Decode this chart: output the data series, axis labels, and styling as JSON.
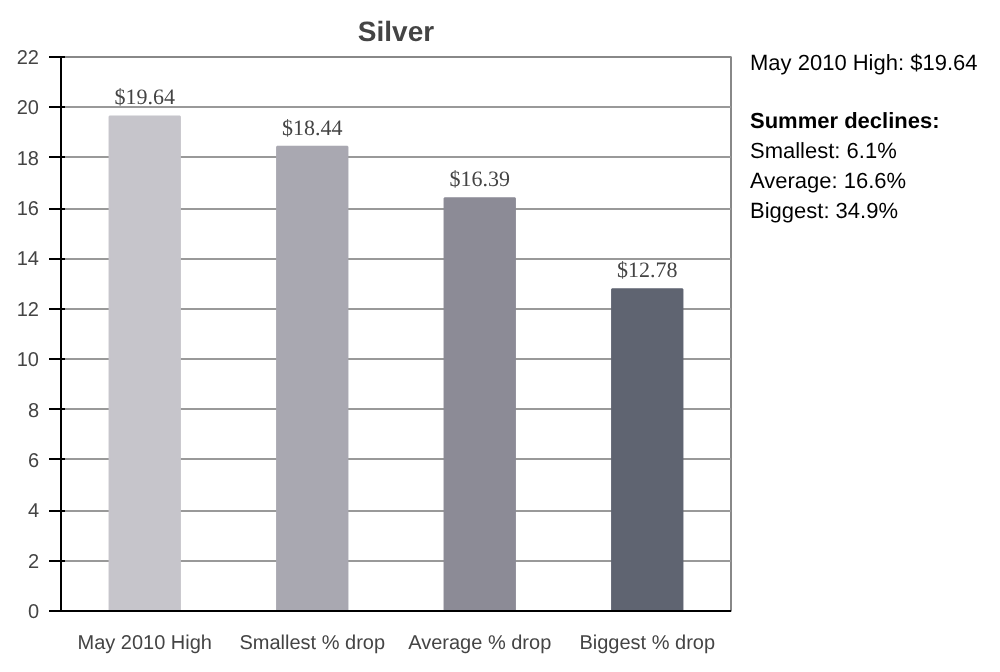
{
  "chart_data": {
    "type": "bar",
    "title": "Silver",
    "categories": [
      "May 2010 High",
      "Smallest % drop",
      "Average % drop",
      "Biggest % drop"
    ],
    "values": [
      19.64,
      18.44,
      16.39,
      12.78
    ],
    "value_labels": [
      "$19.64",
      "$18.44",
      "$16.39",
      "$12.78"
    ],
    "colors": [
      "#c6c5cb",
      "#a9a8b1",
      "#8c8b96",
      "#5f6471"
    ],
    "ylim": [
      0,
      22
    ],
    "yticks": [
      0,
      2,
      4,
      6,
      8,
      10,
      12,
      14,
      16,
      18,
      20,
      22
    ],
    "grid": "y",
    "annotations": [
      "May 2010 High:  $19.64",
      "Summer declines:",
      "Smallest: 6.1%",
      "Average: 16.6%",
      "Biggest: 34.9%"
    ]
  }
}
